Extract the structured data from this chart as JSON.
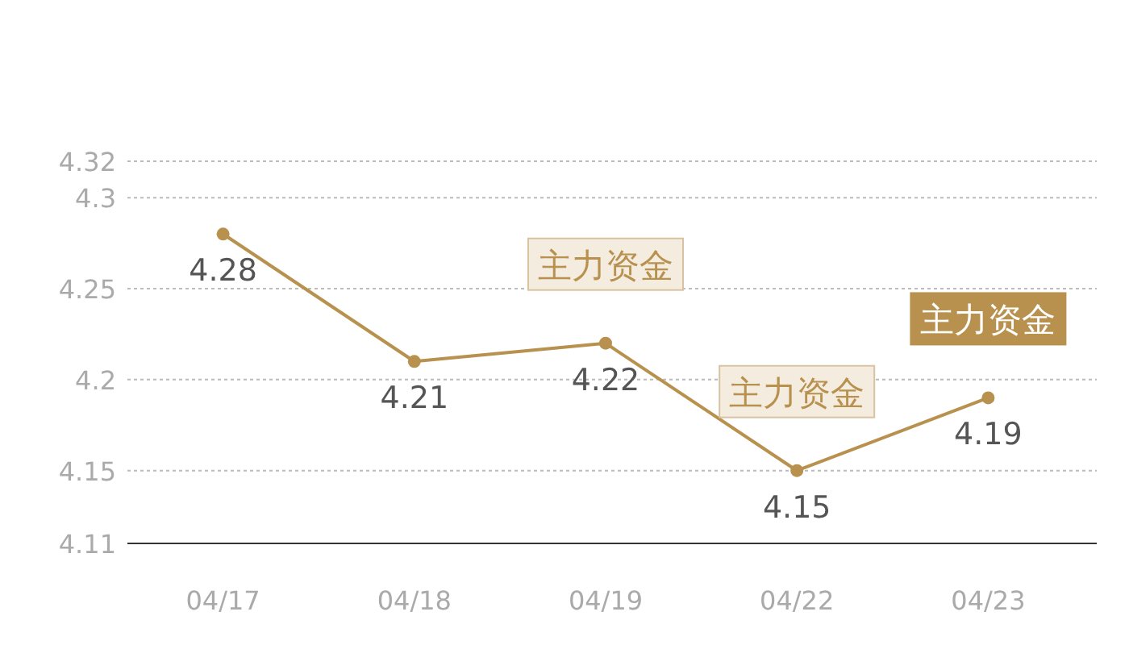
{
  "chart_data": {
    "type": "line",
    "categories": [
      "04/17",
      "04/18",
      "04/19",
      "04/22",
      "04/23"
    ],
    "series": [
      {
        "color": "#b8914f",
        "values": [
          4.28,
          4.21,
          4.22,
          4.15,
          4.19
        ]
      }
    ],
    "ylim": [
      4.11,
      4.32
    ],
    "yticks": [
      4.11,
      4.15,
      4.2,
      4.25,
      4.3,
      4.32
    ],
    "grid": "y",
    "marker": "circle",
    "line_style": "solid",
    "data_labels": true,
    "annotations": [
      {
        "text": "主力资金",
        "x": "04/19",
        "y": 4.22
      },
      {
        "text": "主力资金",
        "x": "04/22",
        "y": 4.15
      },
      {
        "text": "主力资金",
        "x": "04/23",
        "y": 4.19
      }
    ]
  }
}
